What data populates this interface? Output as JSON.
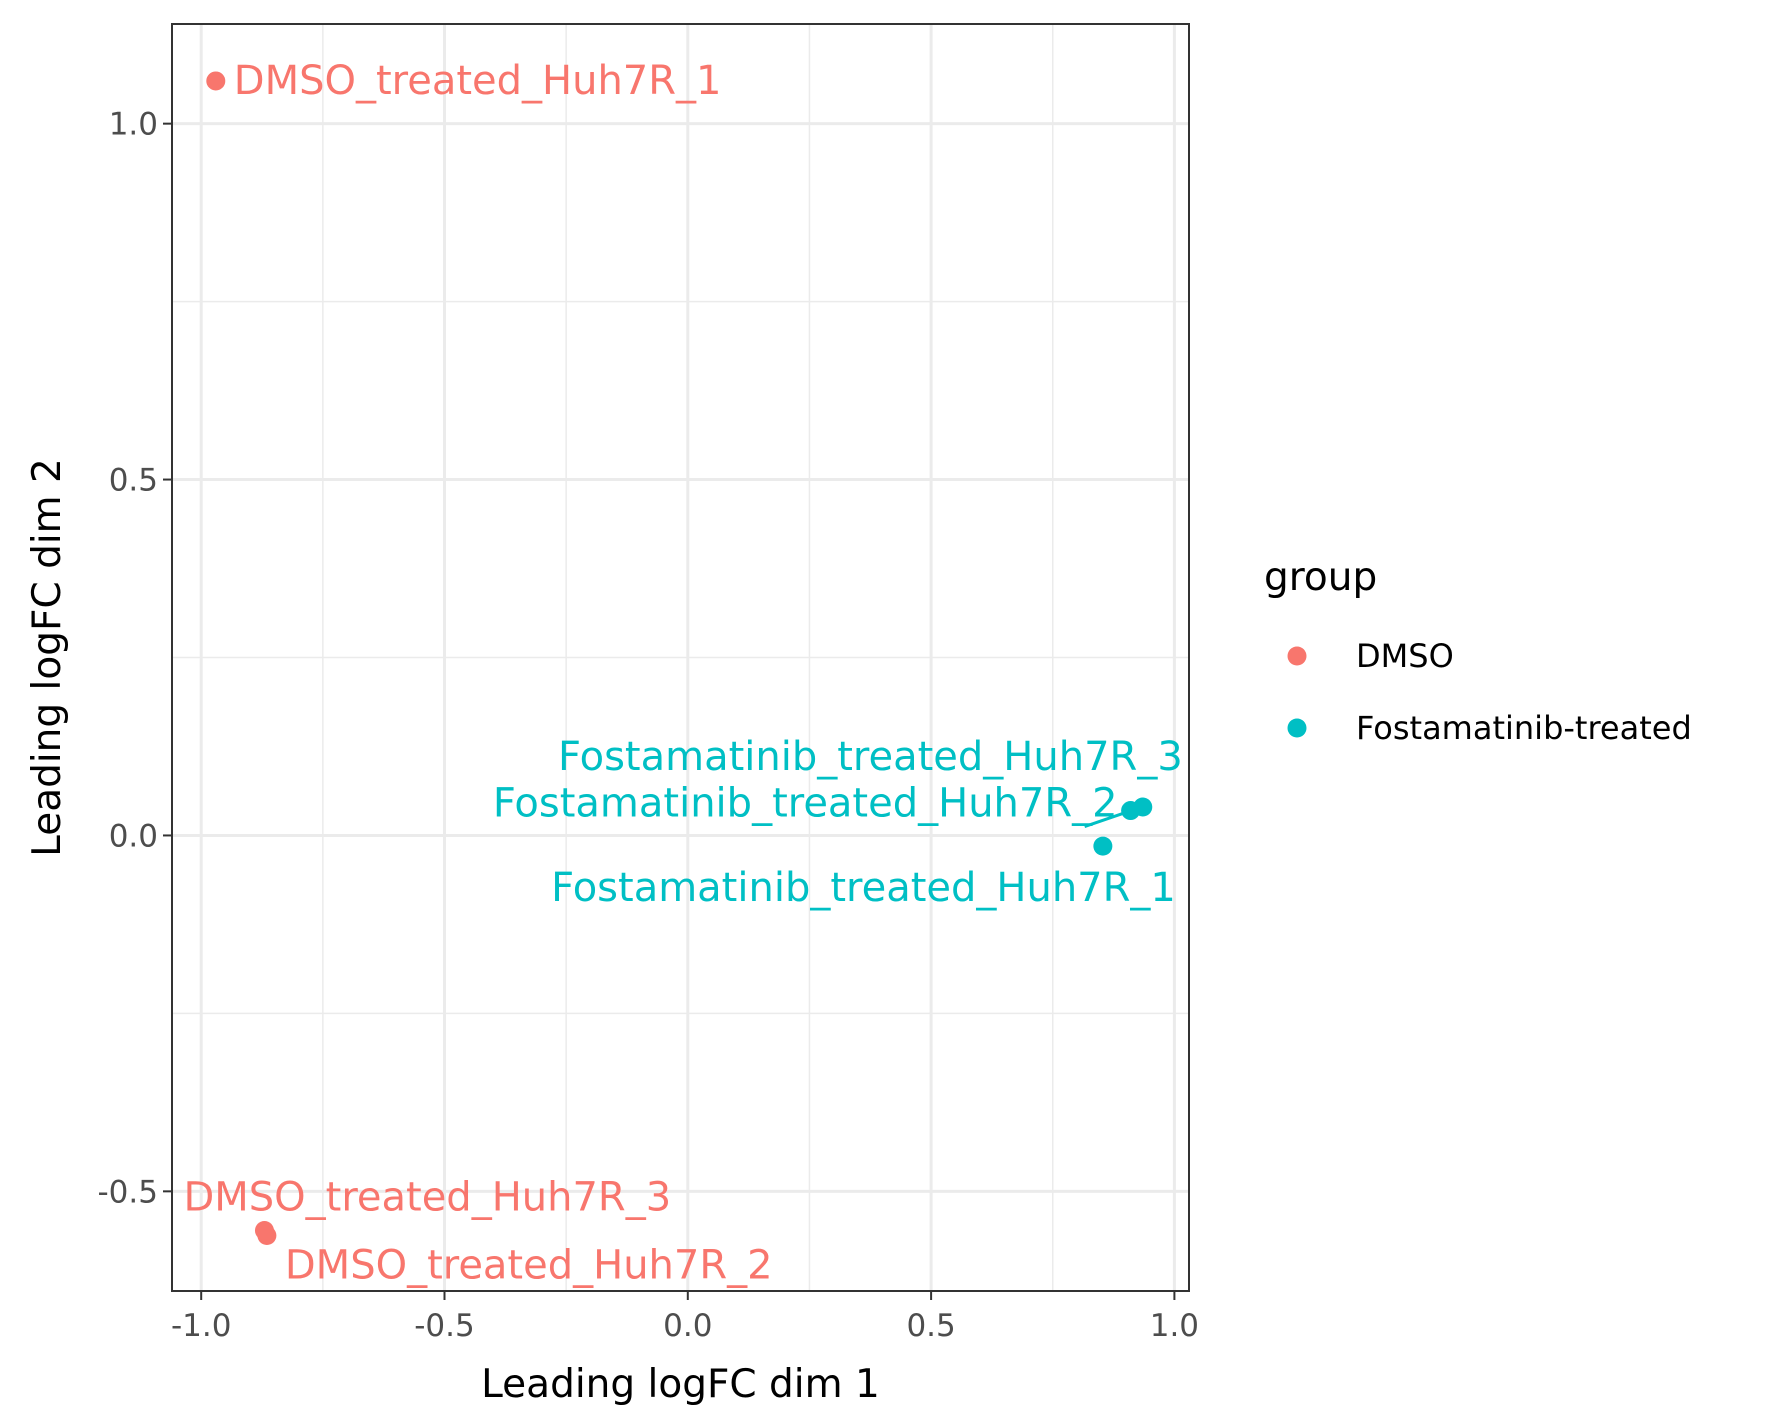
{
  "chart_data": {
    "type": "scatter",
    "title": "",
    "xlabel": "Leading logFC dim 1",
    "ylabel": "Leading logFC dim 2",
    "xlim": [
      -1.06,
      1.03
    ],
    "ylim": [
      -0.64,
      1.14
    ],
    "x_ticks": [
      -1.0,
      -0.5,
      0.0,
      0.5,
      1.0
    ],
    "x_tick_labels": [
      "-1.0",
      "-0.5",
      "0.0",
      "0.5",
      "1.0"
    ],
    "y_ticks": [
      -0.5,
      0.0,
      0.5,
      1.0
    ],
    "y_tick_labels": [
      "-0.5",
      "0.0",
      "0.5",
      "1.0"
    ],
    "grid": true,
    "legend": {
      "title": "group",
      "position": "right",
      "entries": [
        {
          "label": "DMSO",
          "color": "#F8766D"
        },
        {
          "label": "Fostamatinib-treated",
          "color": "#00BFC4"
        }
      ]
    },
    "points": [
      {
        "label": "DMSO_treated_Huh7R_1",
        "group": "DMSO",
        "x": -0.97,
        "y": 1.06
      },
      {
        "label": "DMSO_treated_Huh7R_2",
        "group": "DMSO",
        "x": -0.865,
        "y": -0.562
      },
      {
        "label": "DMSO_treated_Huh7R_3",
        "group": "DMSO",
        "x": -0.87,
        "y": -0.555
      },
      {
        "label": "Fostamatinib_treated_Huh7R_1",
        "group": "Fostamatinib-treated",
        "x": 0.853,
        "y": -0.015
      },
      {
        "label": "Fostamatinib_treated_Huh7R_2",
        "group": "Fostamatinib-treated",
        "x": 0.91,
        "y": 0.035
      },
      {
        "label": "Fostamatinib_treated_Huh7R_3",
        "group": "Fostamatinib-treated",
        "x": 0.935,
        "y": 0.04
      }
    ]
  }
}
